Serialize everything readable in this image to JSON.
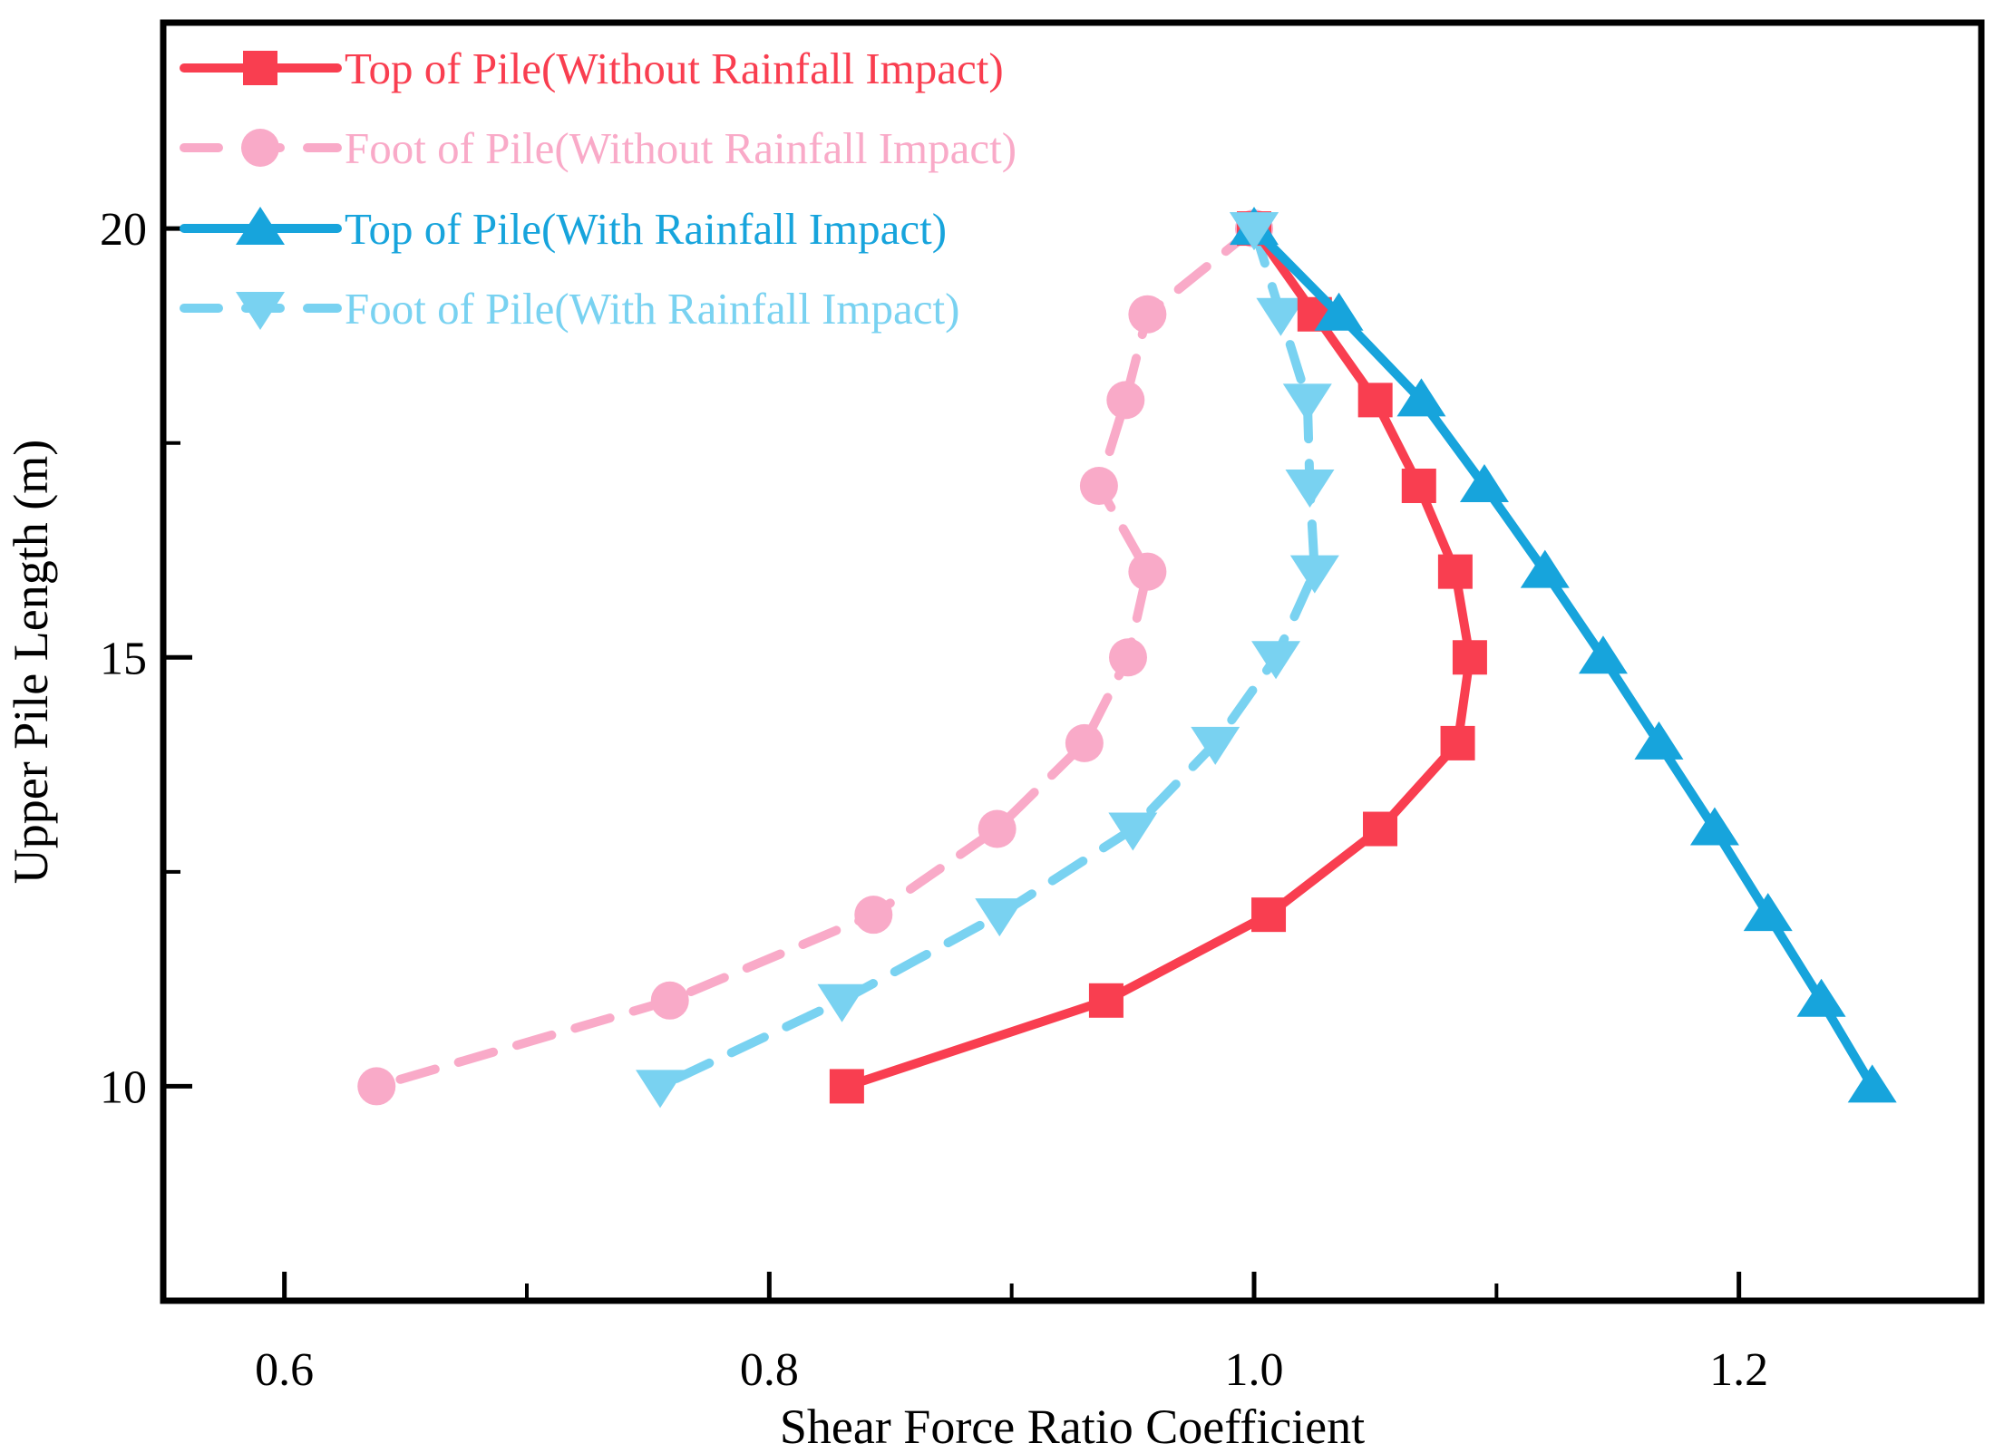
{
  "chart_data": {
    "type": "line",
    "title": "",
    "xlabel": "Shear Force Ratio Coefficient",
    "ylabel": "Upper Pile Length (m)",
    "xlim": [
      0.55,
      1.3
    ],
    "ylim": [
      7.5,
      22.4
    ],
    "x_ticks": [
      0.6,
      0.8,
      1.0,
      1.2
    ],
    "x_tick_labels": [
      "0.6",
      "0.8",
      "1.0",
      "1.2"
    ],
    "x_minor_ticks": [
      0.7,
      0.9,
      1.1
    ],
    "y_ticks": [
      10,
      15,
      20
    ],
    "y_tick_labels": [
      "10",
      "15",
      "20"
    ],
    "y_minor_ticks": [
      12.5,
      17.5
    ],
    "grid": false,
    "legend_position": "top-left-inside",
    "axis_color": "#000000",
    "background": "#ffffff",
    "series": [
      {
        "name": "Top of Pile(Without Rainfall Impact)",
        "color": "#F93E50",
        "line": "solid",
        "marker": "square",
        "x": [
          1.0,
          1.025,
          1.05,
          1.068,
          1.083,
          1.089,
          1.084,
          1.052,
          1.006,
          0.939,
          0.832
        ],
        "y": [
          20,
          19,
          18,
          17,
          16,
          15,
          14,
          13,
          12,
          11,
          10
        ]
      },
      {
        "name": "Foot of Pile(Without Rainfall Impact)",
        "color": "#F9AAC8",
        "line": "dashed",
        "marker": "circle",
        "x": [
          1.0,
          0.956,
          0.947,
          0.936,
          0.956,
          0.948,
          0.93,
          0.894,
          0.843,
          0.759,
          0.638
        ],
        "y": [
          20,
          19,
          18,
          17,
          16,
          15,
          14,
          13,
          12,
          11,
          10
        ]
      },
      {
        "name": "Top of Pile(With Rainfall Impact)",
        "color": "#17A4DC",
        "line": "solid",
        "marker": "triangle-up",
        "x": [
          1.0,
          1.035,
          1.069,
          1.095,
          1.12,
          1.144,
          1.167,
          1.19,
          1.212,
          1.234,
          1.255
        ],
        "y": [
          20,
          19,
          18,
          17,
          16,
          15,
          14,
          13,
          12,
          11,
          10
        ]
      },
      {
        "name": "Foot of Pile(With Rainfall Impact)",
        "color": "#79D2F1",
        "line": "dashed",
        "marker": "triangle-down",
        "x": [
          1.0,
          1.011,
          1.022,
          1.023,
          1.025,
          1.009,
          0.984,
          0.95,
          0.895,
          0.83,
          0.755
        ],
        "y": [
          20,
          19,
          18,
          17,
          16,
          15,
          14,
          13,
          12,
          11,
          10
        ]
      }
    ]
  }
}
